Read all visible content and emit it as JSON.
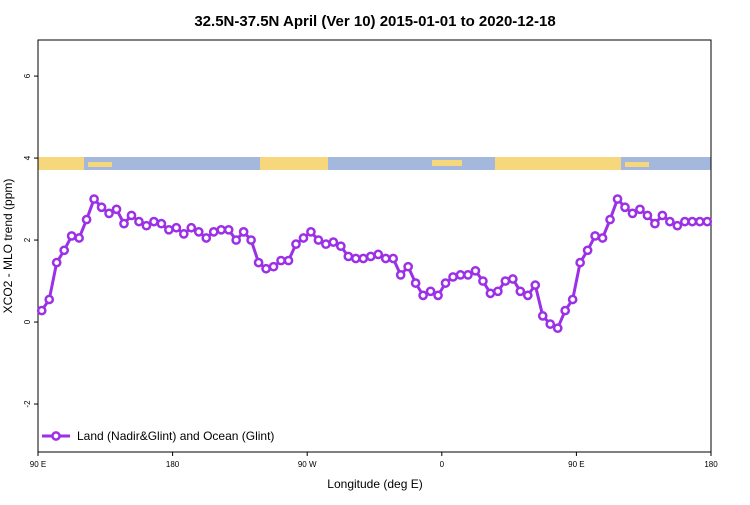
{
  "chart_data": {
    "type": "line",
    "title": "32.5N-37.5N April (Ver 10)   2015-01-01 to 2020-12-18",
    "x_label": "Longitude (deg E)",
    "y_label": "XCO2 - MLO trend (ppm)",
    "x": [
      92.5,
      97.5,
      102.5,
      107.5,
      112.5,
      117.5,
      122.5,
      127.5,
      132.5,
      137.5,
      142.5,
      147.5,
      152.5,
      157.5,
      162.5,
      167.5,
      172.5,
      177.5,
      182.5,
      187.5,
      192.5,
      197.5,
      202.5,
      207.5,
      212.5,
      217.5,
      222.5,
      227.5,
      232.5,
      237.5,
      242.5,
      247.5,
      252.5,
      257.5,
      262.5,
      267.5,
      272.5,
      277.5,
      282.5,
      287.5,
      292.5,
      297.5,
      302.5,
      307.5,
      312.5,
      317.5,
      322.5,
      327.5,
      332.5,
      337.5,
      342.5,
      347.5,
      352.5,
      357.5,
      362.5,
      367.5,
      372.5,
      377.5,
      382.5,
      387.5,
      392.5,
      397.5,
      402.5,
      407.5,
      412.5,
      417.5,
      422.5,
      427.5,
      432.5,
      437.5,
      442.5,
      447.5,
      452.5,
      457.5,
      462.5,
      467.5,
      472.5,
      477.5,
      482.5,
      487.5,
      492.5,
      497.5,
      502.5,
      507.5,
      512.5,
      517.5,
      522.5,
      527.5,
      532.5,
      537.5
    ],
    "series": [
      {
        "name": "Land (Nadir&Glint) and Ocean (Glint)",
        "color": "#9b30e6",
        "values": [
          0.28,
          0.55,
          1.45,
          1.75,
          2.1,
          2.05,
          2.5,
          3.0,
          2.8,
          2.65,
          2.75,
          2.4,
          2.6,
          2.45,
          2.35,
          2.45,
          2.4,
          2.25,
          2.3,
          2.15,
          2.3,
          2.2,
          2.05,
          2.2,
          2.25,
          2.25,
          2.0,
          2.2,
          2.0,
          1.45,
          1.3,
          1.35,
          1.5,
          1.5,
          1.9,
          2.05,
          2.2,
          2.0,
          1.9,
          1.95,
          1.85,
          1.6,
          1.55,
          1.55,
          1.6,
          1.65,
          1.55,
          1.55,
          1.15,
          1.35,
          0.95,
          0.65,
          0.75,
          0.65,
          0.95,
          1.1,
          1.15,
          1.15,
          1.25,
          1.0,
          0.7,
          0.75,
          1.0,
          1.05,
          0.75,
          0.65,
          0.9,
          0.15,
          -0.05,
          -0.15,
          0.28,
          0.55,
          1.45,
          1.75,
          2.1,
          2.05,
          2.5,
          3.0,
          2.8,
          2.65,
          2.75,
          2.6,
          2.4,
          2.6,
          2.45,
          2.35,
          2.45,
          2.45,
          2.45,
          2.45
        ]
      }
    ],
    "xlim": [
      90,
      540
    ],
    "ylim": [
      -3.17,
      6.88
    ],
    "xticks": [
      {
        "value": 90,
        "label": "90 E"
      },
      {
        "value": 180,
        "label": "180"
      },
      {
        "value": 270,
        "label": "90 W"
      },
      {
        "value": 360,
        "label": "0"
      },
      {
        "value": 450,
        "label": "90 E"
      },
      {
        "value": 540,
        "label": "180"
      }
    ],
    "yticks": [
      -2,
      0,
      2,
      4,
      6
    ],
    "legend": "bottom-left"
  }
}
